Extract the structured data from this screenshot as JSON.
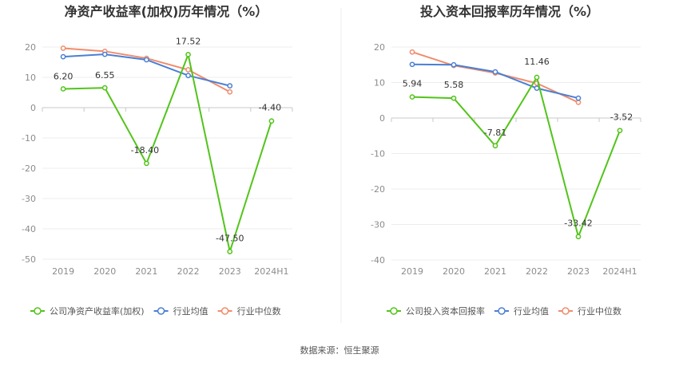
{
  "source": "数据来源：恒生聚源",
  "chart_data": [
    {
      "type": "line",
      "title": "净资产收益率(加权)历年情况（%）",
      "categories": [
        "2019",
        "2020",
        "2021",
        "2022",
        "2023",
        "2024H1"
      ],
      "ylim": [
        -50,
        20
      ],
      "yticks": [
        20,
        10,
        0,
        -10,
        -20,
        -30,
        -40,
        -50
      ],
      "grid": true,
      "legend_position": "bottom-left",
      "series": [
        {
          "name": "公司净资产收益率(加权)",
          "color": "#52c41a",
          "values": [
            6.2,
            6.55,
            -18.4,
            17.52,
            -47.5,
            -4.4
          ],
          "labels": [
            "6.20",
            "6.55",
            "-18.40",
            "17.52",
            "-47.50",
            "-4.40"
          ]
        },
        {
          "name": "行业均值",
          "color": "#4a7fd4",
          "values": [
            16.8,
            17.6,
            15.8,
            10.6,
            7.2,
            null
          ]
        },
        {
          "name": "行业中位数",
          "color": "#f08c6c",
          "values": [
            19.6,
            18.6,
            16.3,
            12.5,
            5.2,
            null
          ]
        }
      ]
    },
    {
      "type": "line",
      "title": "投入资本回报率历年情况（%）",
      "categories": [
        "2019",
        "2020",
        "2021",
        "2022",
        "2023",
        "2024H1"
      ],
      "ylim": [
        -40,
        20
      ],
      "yticks": [
        20,
        10,
        0,
        -10,
        -20,
        -30,
        -40
      ],
      "grid": true,
      "legend_position": "bottom-left",
      "series": [
        {
          "name": "公司投入资本回报率",
          "color": "#52c41a",
          "values": [
            5.94,
            5.58,
            -7.81,
            11.46,
            -33.42,
            -3.52
          ],
          "labels": [
            "5.94",
            "5.58",
            "-7.81",
            "11.46",
            "-33.42",
            "-3.52"
          ]
        },
        {
          "name": "行业均值",
          "color": "#4a7fd4",
          "values": [
            15.1,
            15.0,
            13.0,
            8.4,
            5.6,
            null
          ]
        },
        {
          "name": "行业中位数",
          "color": "#f08c6c",
          "values": [
            18.6,
            14.8,
            12.7,
            9.8,
            4.4,
            null
          ]
        }
      ]
    }
  ]
}
